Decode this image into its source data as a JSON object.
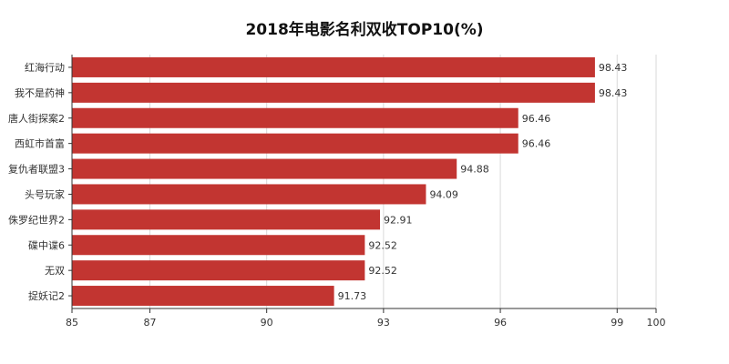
{
  "chart_data": {
    "type": "bar",
    "orientation": "horizontal",
    "title": "2018年电影名利双收TOP10(%)",
    "categories": [
      "红海行动",
      "我不是药神",
      "唐人街探案2",
      "西虹市首富",
      "复仇者联盟3",
      "头号玩家",
      "侏罗纪世界2",
      "碟中谍6",
      "无双",
      "捉妖记2"
    ],
    "values": [
      98.43,
      98.43,
      96.46,
      96.46,
      94.88,
      94.09,
      92.91,
      92.52,
      92.52,
      91.73
    ],
    "value_labels": [
      "98.43",
      "98.43",
      "96.46",
      "96.46",
      "94.88",
      "94.09",
      "92.91",
      "92.52",
      "92.52",
      "91.73"
    ],
    "xlim": [
      85,
      100
    ],
    "x_ticks": [
      85,
      87,
      90,
      93,
      96,
      99,
      100
    ],
    "x_tick_labels": [
      "85",
      "87",
      "90",
      "93",
      "96",
      "99",
      "100"
    ],
    "grid": true,
    "bar_color": "#c23531",
    "xlabel": "",
    "ylabel": ""
  }
}
